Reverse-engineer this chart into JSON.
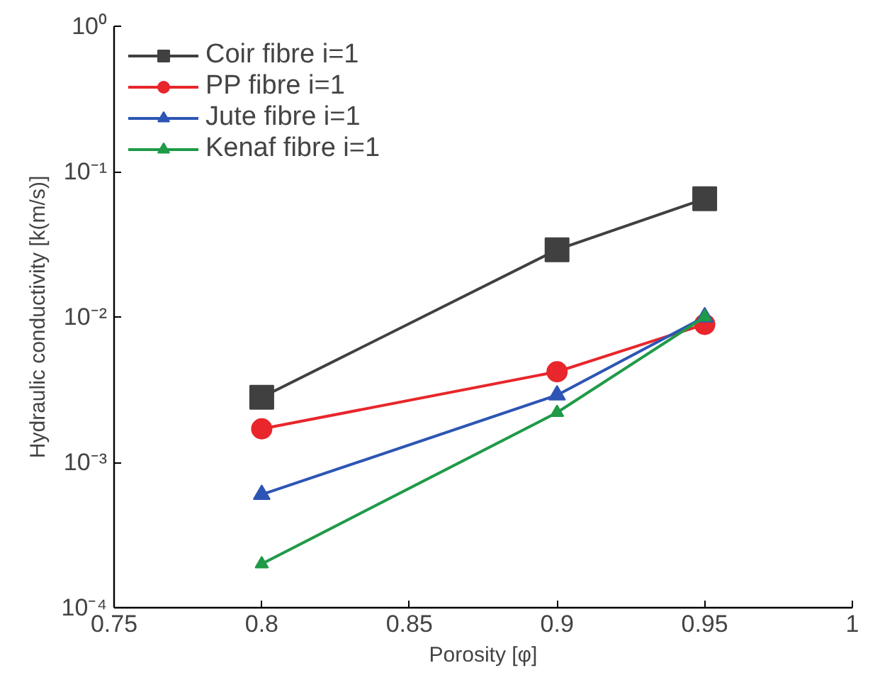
{
  "chart_data": {
    "type": "line",
    "xlabel": "Porosity [φ]",
    "ylabel": "Hydraulic conductivity [k(m/s)]",
    "x": [
      0.8,
      0.9,
      0.95
    ],
    "series": [
      {
        "name": "Coir fibre i=1",
        "color": "#404040",
        "marker": "square",
        "values": [
          0.0028,
          0.029,
          0.065
        ]
      },
      {
        "name": "PP fibre i=1",
        "color": "#e8262b",
        "marker": "circle",
        "values": [
          0.0017,
          0.0042,
          0.0089
        ]
      },
      {
        "name": "Jute fibre i=1",
        "color": "#2d55b5",
        "marker": "triangle",
        "values": [
          0.0006,
          0.0029,
          0.01
        ]
      },
      {
        "name": "Kenaf fibre i=1",
        "color": "#1f9a48",
        "marker": "triangle",
        "values": [
          0.0002,
          0.0022,
          0.01
        ]
      }
    ],
    "xlim": [
      0.75,
      1
    ],
    "xticks": [
      0.75,
      0.8,
      0.85,
      0.9,
      0.95,
      1
    ],
    "ylim": [
      0.0001,
      1
    ],
    "log": "y",
    "yticks": [
      {
        "value": 0.0001,
        "label": "10⁻⁴"
      },
      {
        "value": 0.001,
        "label": "10⁻³"
      },
      {
        "value": 0.01,
        "label": "10⁻²"
      },
      {
        "value": 0.1,
        "label": "10⁻¹"
      },
      {
        "value": 1,
        "label": "10⁰"
      }
    ],
    "legend": "top left",
    "grid": false,
    "line_style": "solid"
  }
}
